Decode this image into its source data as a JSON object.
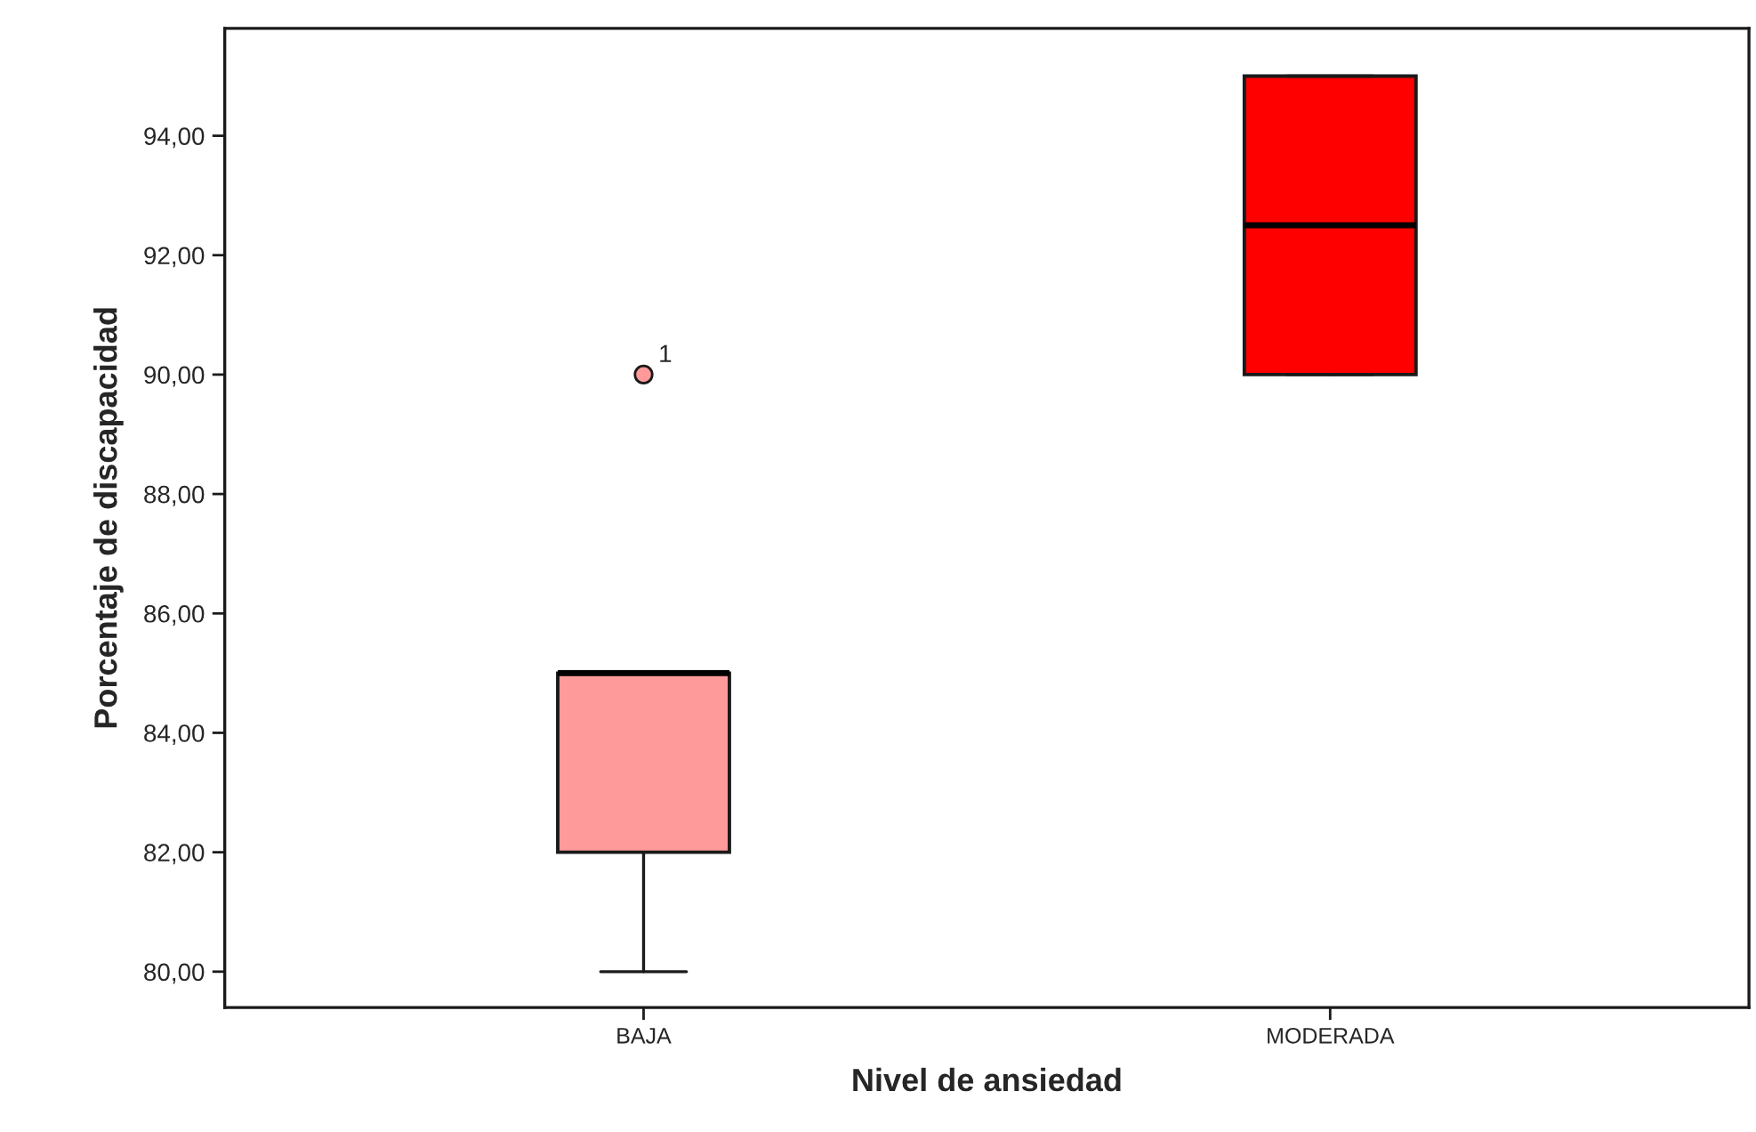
{
  "chart_data": {
    "type": "box",
    "xlabel": "Nivel de ansiedad",
    "ylabel": "Porcentaje de discapacidad",
    "categories": [
      "BAJA",
      "MODERADA"
    ],
    "boxes": [
      {
        "low": 80,
        "q1": 82,
        "median": 85,
        "q3": 85,
        "high": 85,
        "outliers": [
          90
        ]
      },
      {
        "low": 90,
        "q1": 90,
        "median": 92.5,
        "q3": 95,
        "high": 95
      }
    ],
    "colors": [
      "#ff9a9a",
      "#ff0000"
    ],
    "marker": "circle",
    "ylim": [
      79.4,
      95.8
    ],
    "yticks": [
      {
        "value": 80,
        "label": "80,00"
      },
      {
        "value": 82,
        "label": "82,00"
      },
      {
        "value": 84,
        "label": "84,00"
      },
      {
        "value": 86,
        "label": "86,00"
      },
      {
        "value": 88,
        "label": "88,00"
      },
      {
        "value": 90,
        "label": "90,00"
      },
      {
        "value": 92,
        "label": "92,00"
      },
      {
        "value": 94,
        "label": "94,00"
      }
    ],
    "grid": false,
    "annotations": [
      "1"
    ]
  }
}
